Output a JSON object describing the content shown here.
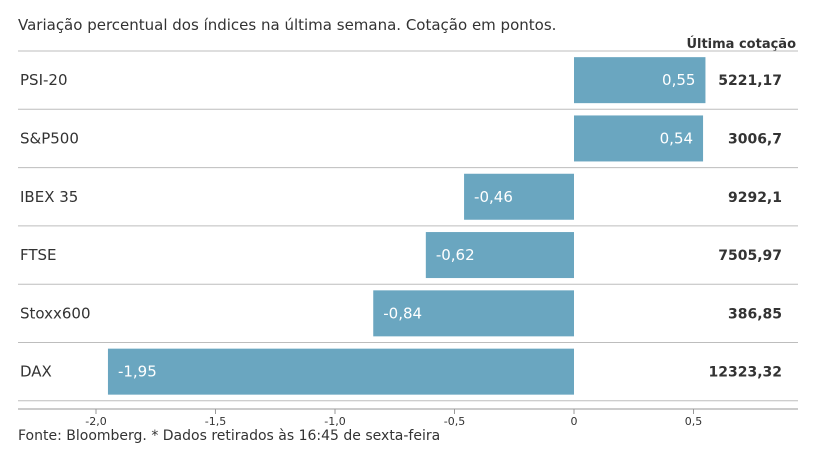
{
  "subtitle": "Variação percentual dos índices na última semana. Cotação em pontos.",
  "source": "Fonte: Bloomberg.  * Dados retirados às 16:45 de sexta-feira",
  "colors": {
    "bar": "#6aa6c0",
    "grid": "#bdbdbd",
    "text": "#333333",
    "label_inside": "#ffffff"
  },
  "chart_data": {
    "type": "bar",
    "orientation": "horizontal",
    "categories": [
      "PSI-20",
      "S&P500",
      "IBEX 35",
      "FTSE",
      "Stoxx600",
      "DAX"
    ],
    "values": [
      0.55,
      0.54,
      -0.46,
      -0.62,
      -0.84,
      -1.95
    ],
    "value_labels": [
      "0,55",
      "0,54",
      "-0,46",
      "-0,62",
      "-0,84",
      "-1,95"
    ],
    "last_quote_header": "Última cotação",
    "last_quote": [
      "5221,17",
      "3006,7",
      "9292,1",
      "7505,97",
      "386,85",
      "12323,32"
    ],
    "xlim": [
      -2.0,
      0.5
    ],
    "x_ticks": [
      -2.0,
      -1.5,
      -1.0,
      -0.5,
      0,
      0.5
    ],
    "x_tick_labels": [
      "-2,0",
      "-1,5",
      "-1,0",
      "-0,5",
      "0",
      "0,5"
    ],
    "grid": true
  }
}
